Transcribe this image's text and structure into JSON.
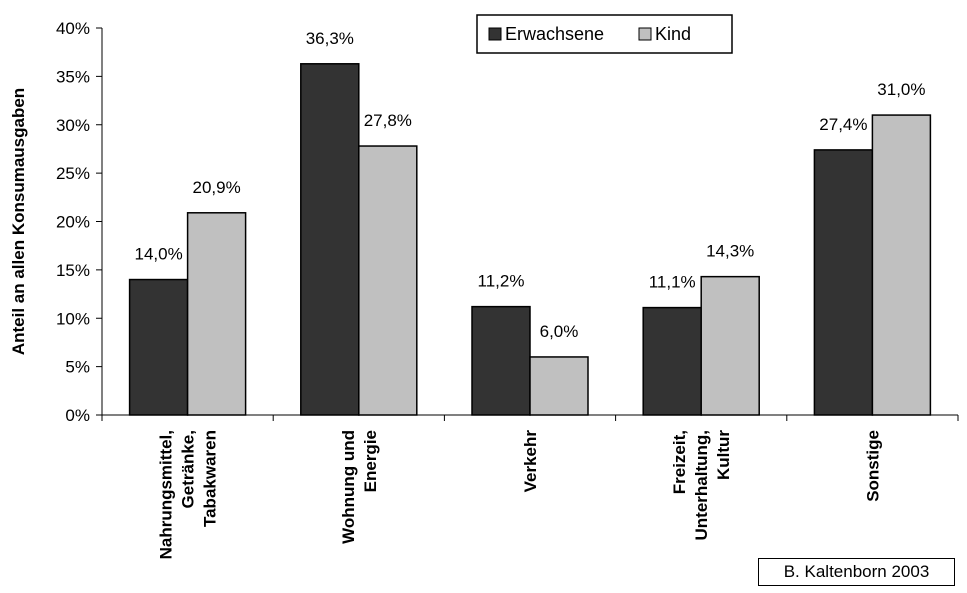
{
  "chart_data": {
    "type": "bar",
    "categories": [
      [
        "Nahrungsmittel,",
        "Getränke,",
        "Tabakwaren"
      ],
      [
        "Wohnung und",
        "Energie"
      ],
      [
        "Verkehr"
      ],
      [
        "Freizeit,",
        "Unterhaltung,",
        "Kultur"
      ],
      [
        "Sonstige"
      ]
    ],
    "series": [
      {
        "name": "Erwachsene",
        "values": [
          14.0,
          36.3,
          11.2,
          11.1,
          27.4
        ],
        "labels": [
          "14,0%",
          "36,3%",
          "11,2%",
          "11,1%",
          "27,4%"
        ]
      },
      {
        "name": "Kind",
        "values": [
          20.9,
          27.8,
          6.0,
          14.3,
          31.0
        ],
        "labels": [
          "20,9%",
          "27,8%",
          "6,0%",
          "14,3%",
          "31,0%"
        ]
      }
    ],
    "ylabel": "Anteil an allen Konsumausgaben",
    "xlabel": "",
    "ylim": [
      0,
      40
    ],
    "yticks": [
      "0%",
      "5%",
      "10%",
      "15%",
      "20%",
      "25%",
      "30%",
      "35%",
      "40%"
    ],
    "legend_position": "top-center",
    "colors": {
      "Erwachsene": "#333333",
      "Kind": "#c0c0c0"
    }
  },
  "credit": "B. Kaltenborn 2003"
}
